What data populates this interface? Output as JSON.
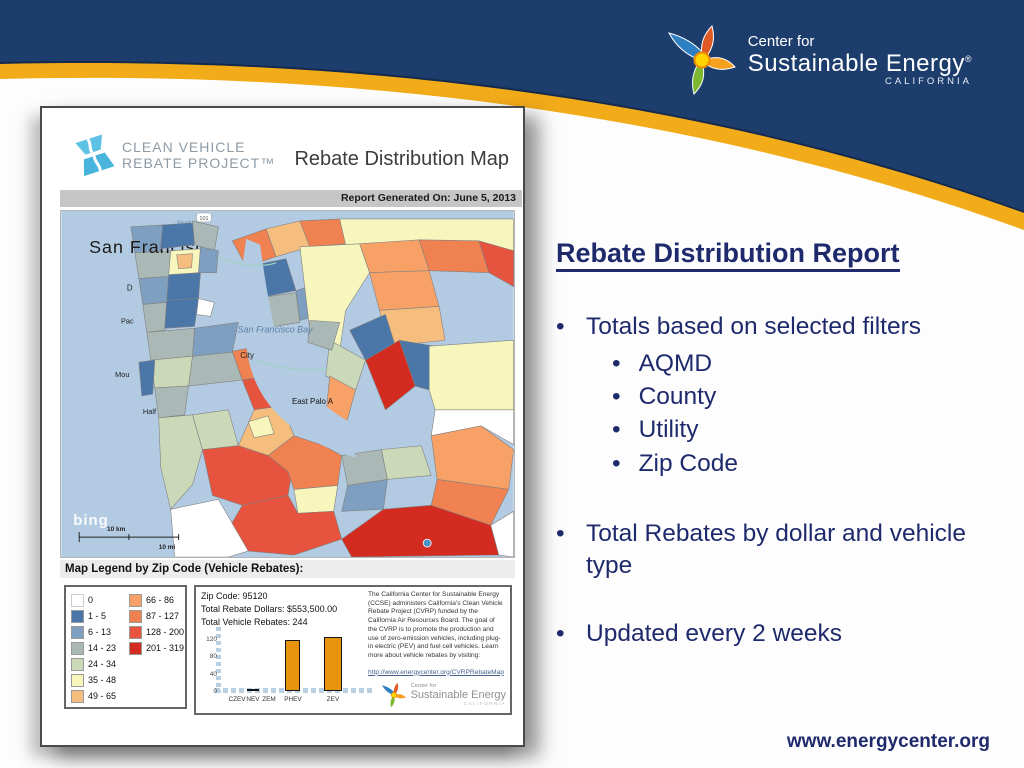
{
  "slide": {
    "brand": {
      "top": "Center for",
      "main": "Sustainable Energy",
      "reg": "®",
      "sub": "CALIFORNIA"
    },
    "heading": "Rebate Distribution Report",
    "bullets": [
      {
        "text": "Totals based on selected filters",
        "sub": [
          "AQMD",
          "County",
          "Utility",
          "Zip Code"
        ]
      },
      {
        "text": "Total Rebates by dollar and vehicle type",
        "sub": []
      },
      {
        "text": "Updated every 2 weeks",
        "sub": []
      }
    ],
    "footer_url": "www.energycenter.org",
    "colors": {
      "navy": "#1d3d6d",
      "gold": "#f3ac19",
      "text_navy": "#1f2a6d"
    }
  },
  "report": {
    "logo_line1": "CLEAN VEHICLE",
    "logo_line2": "REBATE PROJECT™",
    "title": "Rebate Distribution Map",
    "generated": "Report Generated On: June 5, 2013",
    "map_labels": {
      "city": "San Francisco",
      "strait": "Strait",
      "bay": "San Francisco Bay",
      "east_palo_alto": "East Palo A",
      "label_d": "D",
      "label_pac": "Pac",
      "label_mou": "Mou",
      "label_half": "Half",
      "label_city": "City",
      "bing": "bing",
      "scale_km": "10 km",
      "scale_mi": "10 mi",
      "route": "101"
    },
    "legend_title": "Map Legend by Zip Code (Vehicle Rebates):",
    "legend_items": [
      {
        "label": "0",
        "color": "#ffffff"
      },
      {
        "label": "1 - 5",
        "color": "#4a76a8"
      },
      {
        "label": "6 - 13",
        "color": "#7f9fc0"
      },
      {
        "label": "14 - 23",
        "color": "#aab9b5"
      },
      {
        "label": "24 - 34",
        "color": "#ccd9b8"
      },
      {
        "label": "35 - 48",
        "color": "#f7f7bd"
      },
      {
        "label": "49 - 65",
        "color": "#f5bd7e"
      },
      {
        "label": "66 - 86",
        "color": "#f7a167"
      },
      {
        "label": "87 - 127",
        "color": "#f08150"
      },
      {
        "label": "128 - 200",
        "color": "#e65440"
      },
      {
        "label": "201 - 319",
        "color": "#d42b20"
      }
    ],
    "info": {
      "zip": "Zip Code: 95120",
      "dollars": "Total Rebate Dollars: $553,500.00",
      "vehicles": "Total Vehicle Rebates: 244",
      "about": "The California Center for Sustainable Energy (CCSE) administers California's Clean Vehicle Rebate Project (CVRP) funded by the California Air Resources Board. The goal of the CVRP is to promote the production and use of zero-emission vehicles, including plug-in electric (PEV) and fuel cell vehicles. Learn more about vehicle rebates by visiting:",
      "link": "http://www.energycenter.org/CVRPRebateMap",
      "cse_logo": {
        "top": "Center for",
        "main": "Sustainable Energy",
        "sub": "CALIFORNIA"
      }
    }
  },
  "chart_data": {
    "type": "bar",
    "categories": [
      "CZEV",
      "NEV",
      "ZEM",
      "PHEV",
      "ZEV"
    ],
    "values": [
      0,
      2,
      0,
      117,
      125
    ],
    "yticks": [
      0,
      40,
      80,
      120
    ],
    "ylim": [
      0,
      130
    ],
    "title": "",
    "xlabel": "",
    "ylabel": "",
    "grid": false,
    "legend_position": "none",
    "bar_color": "#e8930e"
  }
}
